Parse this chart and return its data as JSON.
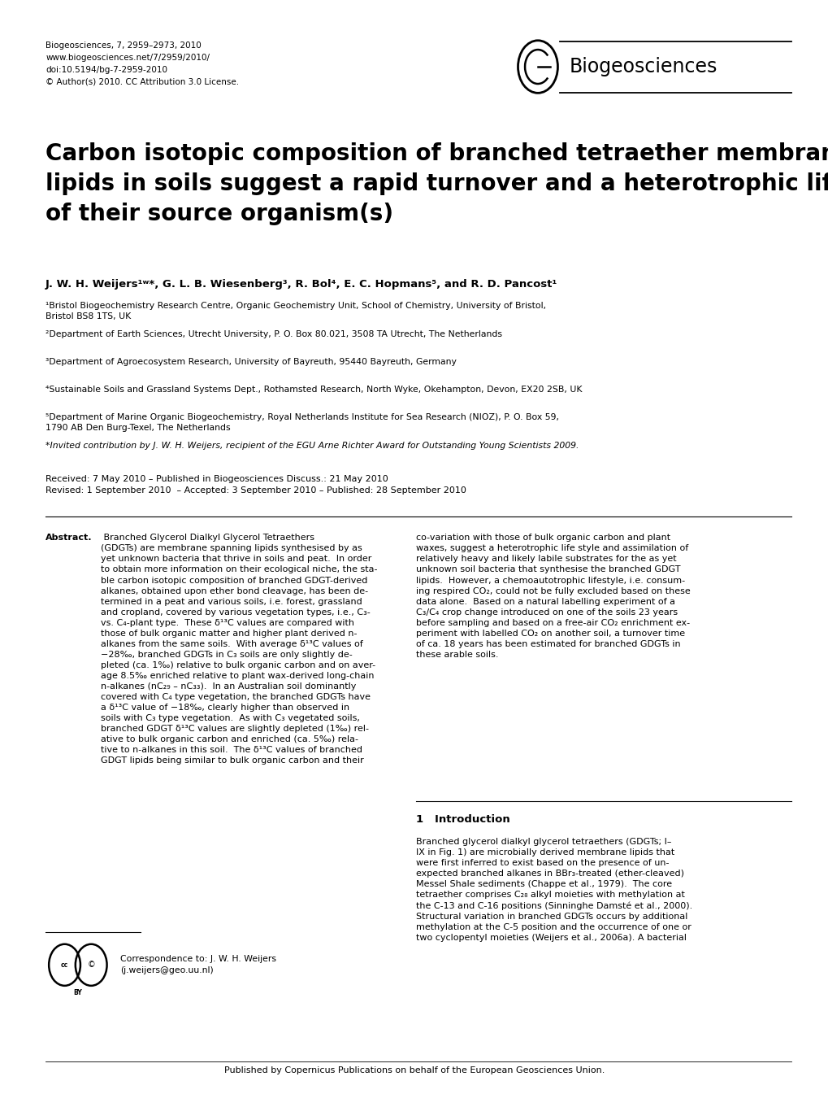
{
  "bg_color": "#ffffff",
  "header_left": "Biogeosciences, 7, 2959–2973, 2010\nwww.biogeosciences.net/7/2959/2010/\ndoi:10.5194/bg-7-2959-2010\n© Author(s) 2010. CC Attribution 3.0 License.",
  "journal_name": "Biogeosciences",
  "title": "Carbon isotopic composition of branched tetraether membrane\nlipids in soils suggest a rapid turnover and a heterotrophic life style\nof their source organism(s)",
  "authors_line": "J. W. H. Weijers¹ʷ*, G. L. B. Wiesenberg³, R. Bol⁴, E. C. Hopmans⁵, and R. D. Pancost¹",
  "affil1": "¹Bristol Biogeochemistry Research Centre, Organic Geochemistry Unit, School of Chemistry, University of Bristol,\nBristol BS8 1TS, UK",
  "affil2": "²Department of Earth Sciences, Utrecht University, P. O. Box 80.021, 3508 TA Utrecht, The Netherlands",
  "affil3": "³Department of Agroecosystem Research, University of Bayreuth, 95440 Bayreuth, Germany",
  "affil4": "⁴Sustainable Soils and Grassland Systems Dept., Rothamsted Research, North Wyke, Okehampton, Devon, EX20 2SB, UK",
  "affil5": "⁵Department of Marine Organic Biogeochemistry, Royal Netherlands Institute for Sea Research (NIOZ), P. O. Box 59,\n1790 AB Den Burg-Texel, The Netherlands",
  "invited": "*Invited contribution by J. W. H. Weijers, recipient of the EGU Arne Richter Award for Outstanding Young Scientists 2009.",
  "received": "Received: 7 May 2010 – Published in Biogeosciences Discuss.: 21 May 2010\nRevised: 1 September 2010  – Accepted: 3 September 2010 – Published: 28 September 2010",
  "abstract_title": "Abstract.",
  "abstract_col1": " Branched Glycerol Dialkyl Glycerol Tetraethers\n(GDGTs) are membrane spanning lipids synthesised by as\nyet unknown bacteria that thrive in soils and peat.  In order\nto obtain more information on their ecological niche, the sta-\nble carbon isotopic composition of branched GDGT-derived\nalkanes, obtained upon ether bond cleavage, has been de-\ntermined in a peat and various soils, i.e. forest, grassland\nand cropland, covered by various vegetation types, i.e., C₃-\nvs. C₄-plant type.  These δ¹³C values are compared with\nthose of bulk organic matter and higher plant derived n-\nalkanes from the same soils.  With average δ¹³C values of\n−28‰, branched GDGTs in C₃ soils are only slightly de-\npleted (ca. 1‰) relative to bulk organic carbon and on aver-\nage 8.5‰ enriched relative to plant wax-derived long-chain\nn-alkanes (nC₂₉ – nC₃₃).  In an Australian soil dominantly\ncovered with C₄ type vegetation, the branched GDGTs have\na δ¹³C value of −18‰, clearly higher than observed in\nsoils with C₃ type vegetation.  As with C₃ vegetated soils,\nbranched GDGT δ¹³C values are slightly depleted (1‰) rel-\native to bulk organic carbon and enriched (ca. 5‰) rela-\ntive to n-alkanes in this soil.  The δ¹³C values of branched\nGDGT lipids being similar to bulk organic carbon and their",
  "abstract_col2": "co-variation with those of bulk organic carbon and plant\nwaxes, suggest a heterotrophic life style and assimilation of\nrelatively heavy and likely labile substrates for the as yet\nunknown soil bacteria that synthesise the branched GDGT\nlipids.  However, a chemoautotrophic lifestyle, i.e. consum-\ning respired CO₂, could not be fully excluded based on these\ndata alone.  Based on a natural labelling experiment of a\nC₃/C₄ crop change introduced on one of the soils 23 years\nbefore sampling and based on a free-air CO₂ enrichment ex-\nperiment with labelled CO₂ on another soil, a turnover time\nof ca. 18 years has been estimated for branched GDGTs in\nthese arable soils.",
  "section1_title": "1   Introduction",
  "section1_col2": "Branched glycerol dialkyl glycerol tetraethers (GDGTs; I–\nIX in Fig. 1) are microbially derived membrane lipids that\nwere first inferred to exist based on the presence of un-\nexpected branched alkanes in BBr₃-treated (ether-cleaved)\nMessel Shale sediments (Chappe et al., 1979).  The core\ntetraether comprises C₂₈ alkyl moieties with methylation at\nthe C-13 and C-16 positions (Sinninghe Damsté et al., 2000).\nStructural variation in branched GDGTs occurs by additional\nmethylation at the C-5 position and the occurrence of one or\ntwo cyclopentyl moieties (Weijers et al., 2006a). A bacterial",
  "cc_license_text": "Correspondence to: J. W. H. Weijers\n(j.weijers@geo.uu.nl)",
  "footer": "Published by Copernicus Publications on behalf of the European Geosciences Union."
}
